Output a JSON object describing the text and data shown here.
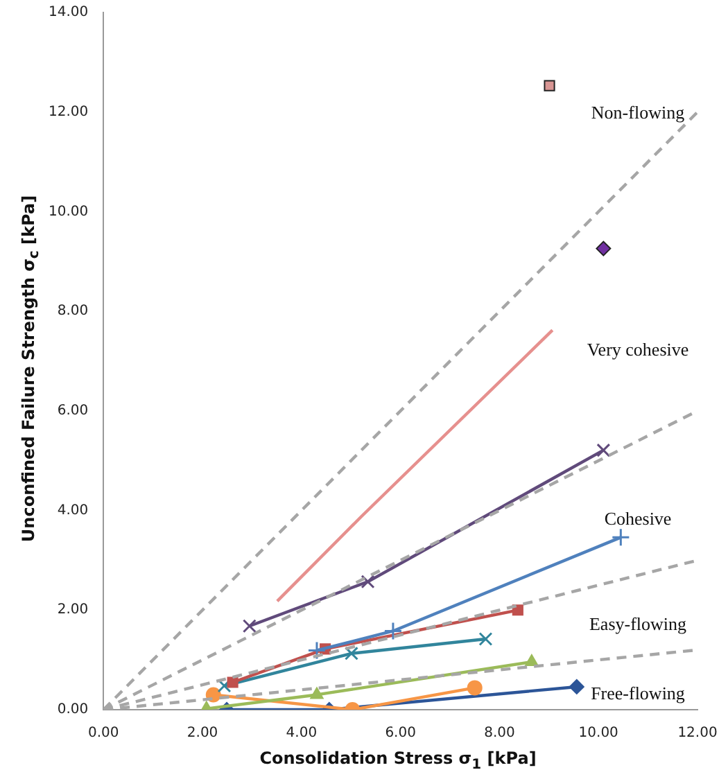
{
  "chart_data": {
    "type": "line",
    "xlabel": "Consolidation Stress σ$_{1}$ [kPa]",
    "ylabel": "Unconfined Failure Strength σ$_{c}$ [kPa]",
    "xlim": [
      0,
      12
    ],
    "ylim": [
      0,
      14
    ],
    "xticks": [
      {
        "value": 0,
        "label": "0.00"
      },
      {
        "value": 2,
        "label": "2.00"
      },
      {
        "value": 4,
        "label": "4.00"
      },
      {
        "value": 6,
        "label": "6.00"
      },
      {
        "value": 8,
        "label": "8.00"
      },
      {
        "value": 10,
        "label": "10.00"
      },
      {
        "value": 12,
        "label": "12.00"
      }
    ],
    "yticks": [
      {
        "value": 0,
        "label": "0.00"
      },
      {
        "value": 2,
        "label": "2.00"
      },
      {
        "value": 4,
        "label": "4.00"
      },
      {
        "value": 6,
        "label": "6.00"
      },
      {
        "value": 8,
        "label": "8.00"
      },
      {
        "value": 10,
        "label": "10.00"
      },
      {
        "value": 12,
        "label": "12.00"
      },
      {
        "value": 14,
        "label": "14.00"
      }
    ],
    "grid": false,
    "legend": false,
    "series": [
      {
        "color": "#a6a6a6",
        "line_style": "dashed",
        "marker": "none",
        "x": [
          0,
          12
        ],
        "values": [
          0,
          12
        ]
      },
      {
        "color": "#a6a6a6",
        "line_style": "dashed",
        "marker": "none",
        "x": [
          0,
          12
        ],
        "values": [
          0,
          6
        ]
      },
      {
        "color": "#a6a6a6",
        "line_style": "dashed",
        "marker": "none",
        "x": [
          0,
          12
        ],
        "values": [
          0,
          3
        ]
      },
      {
        "color": "#a6a6a6",
        "line_style": "dashed",
        "marker": "none",
        "x": [
          0,
          12
        ],
        "values": [
          0,
          1.2
        ]
      },
      {
        "color": "#e6908e",
        "line_style": "solid",
        "marker": "none",
        "x": [
          3.51,
          5.21,
          9.07
        ],
        "values": [
          2.18,
          3.88,
          7.62
        ]
      },
      {
        "color": "#604a7b",
        "line_style": "solid",
        "marker": "cross",
        "x": [
          2.95,
          5.34,
          10.1
        ],
        "values": [
          1.68,
          2.57,
          5.21
        ]
      },
      {
        "color": "#4f81bd",
        "line_style": "solid",
        "marker": "plus",
        "x": [
          4.31,
          5.85,
          10.45
        ],
        "values": [
          1.19,
          1.58,
          3.46
        ]
      },
      {
        "color": "#c0504d",
        "line_style": "solid",
        "marker": "square",
        "x": [
          2.61,
          4.48,
          8.37
        ],
        "values": [
          0.55,
          1.22,
          2.0
        ]
      },
      {
        "color": "#31859c",
        "line_style": "solid",
        "marker": "cross",
        "x": [
          2.44,
          5.01,
          7.72
        ],
        "values": [
          0.48,
          1.13,
          1.42
        ]
      },
      {
        "color": "#9bbb59",
        "line_style": "solid",
        "marker": "triangle",
        "x": [
          2.08,
          4.31,
          8.65
        ],
        "values": [
          0.02,
          0.3,
          0.96
        ]
      },
      {
        "color": "#f79646",
        "line_style": "solid",
        "marker": "circle",
        "x": [
          2.22,
          5.03,
          7.5
        ],
        "values": [
          0.3,
          0.0,
          0.44
        ]
      },
      {
        "color": "#2c5598",
        "line_style": "solid",
        "marker": "diamond",
        "x": [
          2.49,
          4.56,
          9.56
        ],
        "values": [
          0.0,
          0.0,
          0.46
        ]
      },
      {
        "type": "scatter",
        "color": "#d99694",
        "marker": "square",
        "x": [
          9.01
        ],
        "values": [
          12.53
        ]
      },
      {
        "type": "scatter",
        "color": "#7030a0",
        "marker": "diamond",
        "x": [
          10.1
        ],
        "values": [
          9.26
        ]
      }
    ],
    "annotations": [
      "Non-flowing",
      "Very cohesive",
      "Cohesive",
      "Easy-flowing",
      "Free-flowing"
    ]
  }
}
